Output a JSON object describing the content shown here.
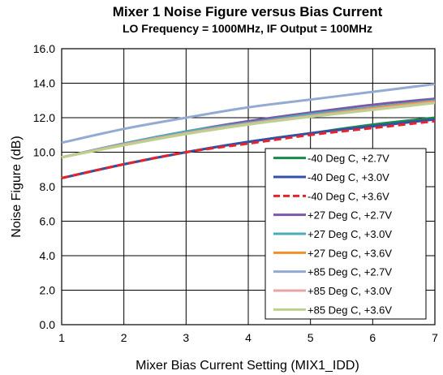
{
  "chart_data": {
    "type": "line",
    "title": "Mixer 1 Noise Figure versus Bias Current",
    "subtitle": "LO Frequency = 1000MHz, IF Output = 100MHz",
    "xlabel": "Mixer Bias Current Setting (MIX1_IDD)",
    "ylabel": "Noise Figure (dB)",
    "xlim": [
      1,
      7
    ],
    "ylim": [
      0,
      16
    ],
    "x_ticks": [
      "1",
      "2",
      "3",
      "4",
      "5",
      "6",
      "7"
    ],
    "y_ticks": [
      "0.0",
      "2.0",
      "4.0",
      "6.0",
      "8.0",
      "10.0",
      "12.0",
      "14.0",
      "16.0"
    ],
    "grid": true,
    "legend_position": "lower-right",
    "x": [
      1,
      2,
      3,
      4,
      5,
      6,
      7
    ],
    "series": [
      {
        "name": "-40 Deg C, +2.7V",
        "color": "#1a8a4a",
        "dash": false,
        "values": [
          8.5,
          9.3,
          10.0,
          10.6,
          11.1,
          11.6,
          12.0
        ]
      },
      {
        "name": "-40 Deg C, +3.0V",
        "color": "#3350a8",
        "dash": false,
        "values": [
          8.5,
          9.3,
          10.0,
          10.6,
          11.1,
          11.5,
          11.9
        ]
      },
      {
        "name": "-40 Deg C, +3.6V",
        "color": "#e8222a",
        "dash": true,
        "values": [
          8.5,
          9.3,
          10.0,
          10.5,
          11.0,
          11.4,
          11.8
        ]
      },
      {
        "name": "+27 Deg C, +2.7V",
        "color": "#7a5aa8",
        "dash": false,
        "values": [
          9.7,
          10.5,
          11.2,
          11.8,
          12.3,
          12.75,
          13.1
        ]
      },
      {
        "name": "+27 Deg C, +3.0V",
        "color": "#4aacb8",
        "dash": false,
        "values": [
          9.7,
          10.5,
          11.2,
          11.7,
          12.2,
          12.6,
          13.0
        ]
      },
      {
        "name": "+27 Deg C, +3.6V",
        "color": "#f0902a",
        "dash": false,
        "values": [
          9.7,
          10.45,
          11.1,
          11.65,
          12.1,
          12.55,
          12.95
        ]
      },
      {
        "name": "+85 Deg C, +2.7V",
        "color": "#93aad2",
        "dash": false,
        "values": [
          10.55,
          11.35,
          12.0,
          12.6,
          13.05,
          13.5,
          13.95
        ]
      },
      {
        "name": "+85 Deg C, +3.0V",
        "color": "#e8a3a3",
        "dash": false,
        "values": [
          9.7,
          10.45,
          11.1,
          11.65,
          12.1,
          12.5,
          12.9
        ]
      },
      {
        "name": "+85 Deg C, +3.6V",
        "color": "#bcd18d",
        "dash": false,
        "values": [
          9.7,
          10.4,
          11.05,
          11.6,
          12.05,
          12.45,
          12.85
        ]
      }
    ]
  }
}
